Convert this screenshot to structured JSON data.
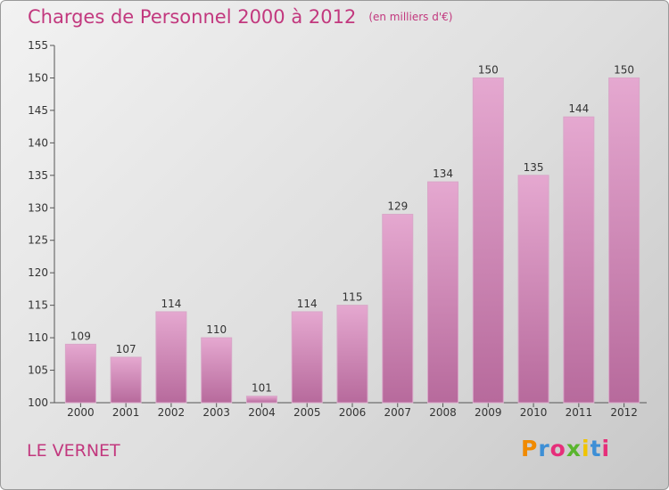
{
  "header": {
    "title": "Charges de Personnel 2000 à 2012",
    "subtitle": "(en milliers d'€)"
  },
  "footer": {
    "commune": "LE VERNET",
    "logo": [
      "P",
      "r",
      "o",
      "x",
      "i",
      "t",
      "i"
    ],
    "logo_colors": [
      "#f08a00",
      "#3d8fd6",
      "#e62e7a",
      "#59b52d",
      "#f0c400",
      "#3d8fd6",
      "#e62e7a"
    ]
  },
  "chart_data": {
    "type": "bar",
    "categories": [
      "2000",
      "2001",
      "2002",
      "2003",
      "2004",
      "2005",
      "2006",
      "2007",
      "2008",
      "2009",
      "2010",
      "2011",
      "2012"
    ],
    "values": [
      109,
      107,
      114,
      110,
      101,
      114,
      115,
      129,
      134,
      150,
      135,
      144,
      150
    ],
    "title": "Charges de Personnel 2000 à 2012",
    "subtitle": "(en milliers d'€)",
    "ylim": [
      100,
      155
    ],
    "yticks": [
      "100",
      "105",
      "110",
      "115",
      "120",
      "125",
      "130",
      "135",
      "140",
      "145",
      "150",
      "155"
    ],
    "grid": false,
    "bar_color": "#d98fbd"
  }
}
